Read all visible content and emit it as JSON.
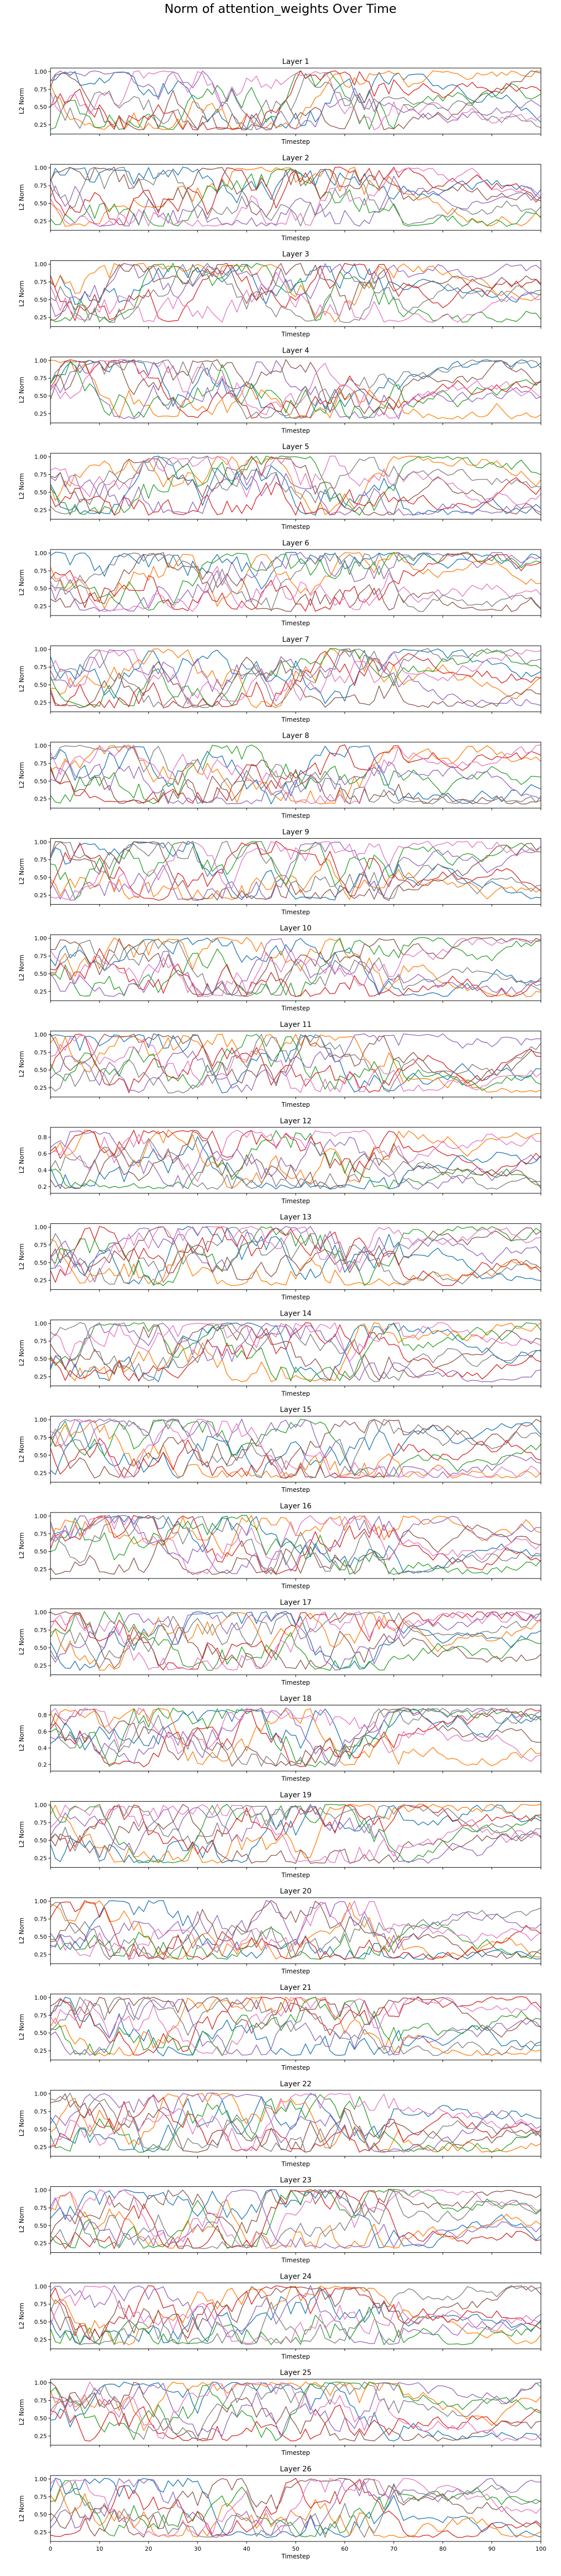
{
  "page": {
    "title": "Norm of attention_weights Over Time"
  },
  "chart_data": {
    "type": "line",
    "series_colors": [
      "#1f77b4",
      "#ff7f0e",
      "#2ca02c",
      "#d62728",
      "#9467bd",
      "#8c564b",
      "#e377c2",
      "#7f7f7f"
    ],
    "xlim": [
      0,
      100
    ],
    "x_ticks": [
      0,
      10,
      20,
      30,
      40,
      50,
      60,
      70,
      80,
      90,
      100
    ],
    "xlabel": "Timestep",
    "ylabel": "L2 Norm",
    "default_y_ticks": [
      "0.25",
      "0.50",
      "0.75",
      "1.00"
    ],
    "grid": false,
    "legend": "none",
    "panels": [
      {
        "title": "Layer 1",
        "ylim": [
          0.12,
          1.05
        ],
        "yticks": [
          0.25,
          0.5,
          0.75,
          1.0
        ],
        "ytick_labels": [
          "0.25",
          "0.50",
          "0.75",
          "1.00"
        ]
      },
      {
        "title": "Layer 2",
        "ylim": [
          0.12,
          1.05
        ],
        "yticks": [
          0.25,
          0.5,
          0.75,
          1.0
        ],
        "ytick_labels": [
          "0.25",
          "0.50",
          "0.75",
          "1.00"
        ]
      },
      {
        "title": "Layer 3",
        "ylim": [
          0.12,
          1.05
        ],
        "yticks": [
          0.25,
          0.5,
          0.75,
          1.0
        ],
        "ytick_labels": [
          "0.25",
          "0.50",
          "0.75",
          "1.00"
        ]
      },
      {
        "title": "Layer 4",
        "ylim": [
          0.12,
          1.05
        ],
        "yticks": [
          0.25,
          0.5,
          0.75,
          1.0
        ],
        "ytick_labels": [
          "0.25",
          "0.50",
          "0.75",
          "1.00"
        ]
      },
      {
        "title": "Layer 5",
        "ylim": [
          0.12,
          1.05
        ],
        "yticks": [
          0.25,
          0.5,
          0.75,
          1.0
        ],
        "ytick_labels": [
          "0.25",
          "0.50",
          "0.75",
          "1.00"
        ]
      },
      {
        "title": "Layer 6",
        "ylim": [
          0.12,
          1.05
        ],
        "yticks": [
          0.25,
          0.5,
          0.75,
          1.0
        ],
        "ytick_labels": [
          "0.25",
          "0.50",
          "0.75",
          "1.00"
        ]
      },
      {
        "title": "Layer 7",
        "ylim": [
          0.12,
          1.05
        ],
        "yticks": [
          0.25,
          0.5,
          0.75,
          1.0
        ],
        "ytick_labels": [
          "0.25",
          "0.50",
          "0.75",
          "1.00"
        ]
      },
      {
        "title": "Layer 8",
        "ylim": [
          0.12,
          1.05
        ],
        "yticks": [
          0.25,
          0.5,
          0.75,
          1.0
        ],
        "ytick_labels": [
          "0.25",
          "0.50",
          "0.75",
          "1.00"
        ]
      },
      {
        "title": "Layer 9",
        "ylim": [
          0.12,
          1.05
        ],
        "yticks": [
          0.25,
          0.5,
          0.75,
          1.0
        ],
        "ytick_labels": [
          "0.25",
          "0.50",
          "0.75",
          "1.00"
        ]
      },
      {
        "title": "Layer 10",
        "ylim": [
          0.12,
          1.05
        ],
        "yticks": [
          0.25,
          0.5,
          0.75,
          1.0
        ],
        "ytick_labels": [
          "0.25",
          "0.50",
          "0.75",
          "1.00"
        ]
      },
      {
        "title": "Layer 11",
        "ylim": [
          0.12,
          1.05
        ],
        "yticks": [
          0.25,
          0.5,
          0.75,
          1.0
        ],
        "ytick_labels": [
          "0.25",
          "0.50",
          "0.75",
          "1.00"
        ]
      },
      {
        "title": "Layer 12",
        "ylim": [
          0.12,
          0.92
        ],
        "yticks": [
          0.2,
          0.4,
          0.6,
          0.8
        ],
        "ytick_labels": [
          "0.2",
          "0.4",
          "0.6",
          "0.8"
        ]
      },
      {
        "title": "Layer 13",
        "ylim": [
          0.12,
          1.05
        ],
        "yticks": [
          0.25,
          0.5,
          0.75,
          1.0
        ],
        "ytick_labels": [
          "0.25",
          "0.50",
          "0.75",
          "1.00"
        ]
      },
      {
        "title": "Layer 14",
        "ylim": [
          0.12,
          1.05
        ],
        "yticks": [
          0.25,
          0.5,
          0.75,
          1.0
        ],
        "ytick_labels": [
          "0.25",
          "0.50",
          "0.75",
          "1.00"
        ]
      },
      {
        "title": "Layer 15",
        "ylim": [
          0.12,
          1.05
        ],
        "yticks": [
          0.25,
          0.5,
          0.75,
          1.0
        ],
        "ytick_labels": [
          "0.25",
          "0.50",
          "0.75",
          "1.00"
        ]
      },
      {
        "title": "Layer 16",
        "ylim": [
          0.12,
          1.05
        ],
        "yticks": [
          0.25,
          0.5,
          0.75,
          1.0
        ],
        "ytick_labels": [
          "0.25",
          "0.50",
          "0.75",
          "1.00"
        ]
      },
      {
        "title": "Layer 17",
        "ylim": [
          0.12,
          1.05
        ],
        "yticks": [
          0.25,
          0.5,
          0.75,
          1.0
        ],
        "ytick_labels": [
          "0.25",
          "0.50",
          "0.75",
          "1.00"
        ]
      },
      {
        "title": "Layer 18",
        "ylim": [
          0.12,
          0.92
        ],
        "yticks": [
          0.2,
          0.4,
          0.6,
          0.8
        ],
        "ytick_labels": [
          "0.2",
          "0.4",
          "0.6",
          "0.8"
        ]
      },
      {
        "title": "Layer 19",
        "ylim": [
          0.12,
          1.05
        ],
        "yticks": [
          0.25,
          0.5,
          0.75,
          1.0
        ],
        "ytick_labels": [
          "0.25",
          "0.50",
          "0.75",
          "1.00"
        ]
      },
      {
        "title": "Layer 20",
        "ylim": [
          0.12,
          1.05
        ],
        "yticks": [
          0.25,
          0.5,
          0.75,
          1.0
        ],
        "ytick_labels": [
          "0.25",
          "0.50",
          "0.75",
          "1.00"
        ]
      },
      {
        "title": "Layer 21",
        "ylim": [
          0.12,
          1.05
        ],
        "yticks": [
          0.25,
          0.5,
          0.75,
          1.0
        ],
        "ytick_labels": [
          "0.25",
          "0.50",
          "0.75",
          "1.00"
        ]
      },
      {
        "title": "Layer 22",
        "ylim": [
          0.12,
          1.05
        ],
        "yticks": [
          0.25,
          0.5,
          0.75,
          1.0
        ],
        "ytick_labels": [
          "0.25",
          "0.50",
          "0.75",
          "1.00"
        ]
      },
      {
        "title": "Layer 23",
        "ylim": [
          0.12,
          1.05
        ],
        "yticks": [
          0.25,
          0.5,
          0.75,
          1.0
        ],
        "ytick_labels": [
          "0.25",
          "0.50",
          "0.75",
          "1.00"
        ]
      },
      {
        "title": "Layer 24",
        "ylim": [
          0.12,
          1.05
        ],
        "yticks": [
          0.25,
          0.5,
          0.75,
          1.0
        ],
        "ytick_labels": [
          "0.25",
          "0.50",
          "0.75",
          "1.00"
        ]
      },
      {
        "title": "Layer 25",
        "ylim": [
          0.12,
          1.05
        ],
        "yticks": [
          0.25,
          0.5,
          0.75,
          1.0
        ],
        "ytick_labels": [
          "0.25",
          "0.50",
          "0.75",
          "1.00"
        ]
      },
      {
        "title": "Layer 26",
        "ylim": [
          0.12,
          1.05
        ],
        "yticks": [
          0.25,
          0.5,
          0.75,
          1.0
        ],
        "ytick_labels": [
          "0.25",
          "0.50",
          "0.75",
          "1.00"
        ]
      }
    ]
  }
}
